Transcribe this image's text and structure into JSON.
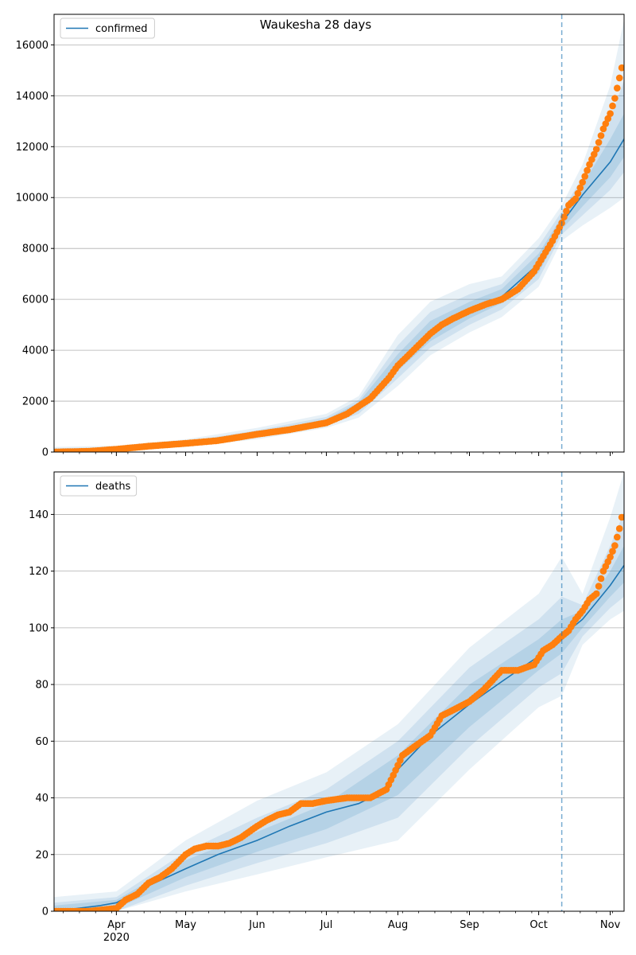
{
  "chart_data": [
    {
      "type": "line",
      "title": "Waukesha 28 days",
      "xlabel": "",
      "ylabel": "",
      "legend": {
        "placement": "top-left",
        "entries": [
          "confirmed"
        ]
      },
      "grid": "horizontal",
      "xlim": [
        "2020-03-05",
        "2020-11-07"
      ],
      "ylim": [
        0,
        17200
      ],
      "yticks": [
        0,
        2000,
        4000,
        6000,
        8000,
        10000,
        12000,
        14000,
        16000
      ],
      "forecast_start": "2020-10-11",
      "colors": {
        "model": "#1f77b4",
        "observed": "#ff7f0e",
        "bands": "#1f77b4"
      },
      "series": [
        {
          "name": "confirmed",
          "kind": "model-line",
          "x": [
            "2020-03-05",
            "2020-04-01",
            "2020-05-01",
            "2020-06-01",
            "2020-07-01",
            "2020-07-15",
            "2020-07-25",
            "2020-08-01",
            "2020-08-10",
            "2020-08-20",
            "2020-09-01",
            "2020-09-15",
            "2020-10-01",
            "2020-10-11",
            "2020-10-20",
            "2020-11-01",
            "2020-11-07"
          ],
          "y": [
            0,
            120,
            330,
            700,
            1200,
            1800,
            2650,
            3500,
            4250,
            4950,
            5550,
            6100,
            7400,
            9000,
            10100,
            11400,
            12300
          ]
        },
        {
          "name": "observed confirmed",
          "kind": "points",
          "x": [
            "2020-03-05",
            "2020-03-20",
            "2020-04-01",
            "2020-04-15",
            "2020-05-01",
            "2020-05-15",
            "2020-06-01",
            "2020-06-15",
            "2020-07-01",
            "2020-07-10",
            "2020-07-20",
            "2020-07-28",
            "2020-08-01",
            "2020-08-05",
            "2020-08-10",
            "2020-08-15",
            "2020-08-20",
            "2020-08-25",
            "2020-09-01",
            "2020-09-08",
            "2020-09-15",
            "2020-09-22",
            "2020-09-29",
            "2020-10-03",
            "2020-10-07",
            "2020-10-11",
            "2020-10-14",
            "2020-10-17",
            "2020-10-20",
            "2020-10-23",
            "2020-10-26",
            "2020-10-29",
            "2020-11-01",
            "2020-11-03",
            "2020-11-05",
            "2020-11-06"
          ],
          "y": [
            0,
            30,
            110,
            230,
            340,
            450,
            700,
            880,
            1150,
            1500,
            2100,
            2900,
            3400,
            3750,
            4200,
            4650,
            5000,
            5250,
            5550,
            5800,
            6000,
            6400,
            7100,
            7700,
            8300,
            9000,
            9700,
            9950,
            10600,
            11300,
            11900,
            12700,
            13300,
            13900,
            14700,
            15100
          ]
        }
      ],
      "bands": [
        {
          "x": [
            "2020-03-05",
            "2020-04-01",
            "2020-05-01",
            "2020-06-01",
            "2020-07-01",
            "2020-07-15",
            "2020-08-01",
            "2020-08-15",
            "2020-09-01",
            "2020-09-15",
            "2020-10-01",
            "2020-10-11",
            "2020-10-20",
            "2020-11-01",
            "2020-11-07"
          ],
          "lower": [
            0,
            40,
            200,
            500,
            950,
            1350,
            2600,
            3800,
            4700,
            5300,
            6500,
            8300,
            8900,
            9600,
            10000
          ],
          "upper": [
            200,
            250,
            500,
            950,
            1500,
            2200,
            4600,
            5900,
            6600,
            6900,
            8400,
            9700,
            11300,
            14400,
            17000
          ]
        },
        {
          "x": [
            "2020-03-05",
            "2020-04-01",
            "2020-05-01",
            "2020-06-01",
            "2020-07-01",
            "2020-07-15",
            "2020-08-01",
            "2020-08-15",
            "2020-09-01",
            "2020-09-15",
            "2020-10-01",
            "2020-10-11",
            "2020-10-20",
            "2020-11-01",
            "2020-11-07"
          ],
          "lower": [
            0,
            70,
            250,
            580,
            1050,
            1500,
            2900,
            4100,
            5000,
            5600,
            6800,
            8550,
            9300,
            10300,
            11000
          ],
          "upper": [
            150,
            190,
            420,
            850,
            1380,
            2050,
            4200,
            5500,
            6200,
            6600,
            8100,
            9450,
            10800,
            13100,
            14600
          ]
        },
        {
          "x": [
            "2020-03-05",
            "2020-04-01",
            "2020-05-01",
            "2020-06-01",
            "2020-07-01",
            "2020-07-15",
            "2020-08-01",
            "2020-08-15",
            "2020-09-01",
            "2020-09-15",
            "2020-10-01",
            "2020-10-11",
            "2020-10-20",
            "2020-11-01",
            "2020-11-07"
          ],
          "lower": [
            0,
            95,
            290,
            640,
            1120,
            1620,
            3200,
            4350,
            5250,
            5850,
            7050,
            8750,
            9650,
            10800,
            11600
          ],
          "upper": [
            90,
            150,
            370,
            770,
            1290,
            1950,
            3850,
            5150,
            5900,
            6400,
            7800,
            9250,
            10500,
            12300,
            13300
          ]
        }
      ],
      "xticks": {
        "major": [
          "Apr\n2020",
          "May",
          "Jun",
          "Jul",
          "Aug",
          "Sep",
          "Oct",
          "Nov"
        ],
        "major_dates": [
          "2020-04-01",
          "2020-05-01",
          "2020-06-01",
          "2020-07-01",
          "2020-08-01",
          "2020-09-01",
          "2020-10-01",
          "2020-11-01"
        ],
        "show_labels": false
      }
    },
    {
      "type": "line",
      "title": "",
      "xlabel": "",
      "ylabel": "",
      "legend": {
        "placement": "top-left",
        "entries": [
          "deaths"
        ]
      },
      "grid": "horizontal",
      "xlim": [
        "2020-03-05",
        "2020-11-07"
      ],
      "ylim": [
        0,
        155
      ],
      "yticks": [
        0,
        20,
        40,
        60,
        80,
        100,
        120,
        140
      ],
      "forecast_start": "2020-10-11",
      "colors": {
        "model": "#1f77b4",
        "observed": "#ff7f0e",
        "bands": "#1f77b4"
      },
      "series": [
        {
          "name": "deaths",
          "kind": "model-line",
          "x": [
            "2020-03-05",
            "2020-03-25",
            "2020-04-01",
            "2020-04-15",
            "2020-05-01",
            "2020-05-15",
            "2020-06-01",
            "2020-06-15",
            "2020-07-01",
            "2020-07-15",
            "2020-07-25",
            "2020-08-01",
            "2020-08-15",
            "2020-09-01",
            "2020-09-15",
            "2020-10-01",
            "2020-10-11",
            "2020-10-20",
            "2020-11-01",
            "2020-11-07"
          ],
          "y": [
            0,
            2,
            3,
            9,
            15,
            20,
            25,
            30,
            35,
            38,
            42,
            50,
            62,
            73,
            81,
            90,
            97,
            103,
            115,
            122
          ]
        },
        {
          "name": "observed deaths",
          "kind": "points",
          "x": [
            "2020-03-05",
            "2020-03-20",
            "2020-04-01",
            "2020-04-05",
            "2020-04-10",
            "2020-04-15",
            "2020-04-20",
            "2020-04-25",
            "2020-05-01",
            "2020-05-05",
            "2020-05-10",
            "2020-05-15",
            "2020-05-20",
            "2020-05-25",
            "2020-06-01",
            "2020-06-05",
            "2020-06-10",
            "2020-06-15",
            "2020-06-20",
            "2020-06-25",
            "2020-07-01",
            "2020-07-10",
            "2020-07-20",
            "2020-07-27",
            "2020-07-30",
            "2020-08-03",
            "2020-08-08",
            "2020-08-15",
            "2020-08-20",
            "2020-08-25",
            "2020-09-01",
            "2020-09-07",
            "2020-09-15",
            "2020-09-22",
            "2020-09-29",
            "2020-10-03",
            "2020-10-07",
            "2020-10-11",
            "2020-10-14",
            "2020-10-17",
            "2020-10-20",
            "2020-10-23",
            "2020-10-26",
            "2020-10-29",
            "2020-11-01",
            "2020-11-03",
            "2020-11-05",
            "2020-11-06"
          ],
          "y": [
            0,
            0,
            1,
            4,
            6,
            10,
            12,
            15,
            20,
            22,
            23,
            23,
            24,
            26,
            30,
            32,
            34,
            35,
            38,
            38,
            39,
            40,
            40,
            43,
            48,
            55,
            58,
            62,
            69,
            71,
            74,
            78,
            85,
            85,
            87,
            92,
            94,
            97,
            99,
            103,
            106,
            110,
            112,
            120,
            125,
            129,
            135,
            139
          ]
        }
      ],
      "bands": [
        {
          "x": [
            "2020-03-05",
            "2020-04-01",
            "2020-05-01",
            "2020-06-01",
            "2020-07-01",
            "2020-08-01",
            "2020-09-01",
            "2020-10-01",
            "2020-10-11",
            "2020-10-20",
            "2020-11-01",
            "2020-11-07"
          ],
          "lower": [
            0,
            0,
            7,
            13,
            19,
            25,
            50,
            72,
            76,
            94,
            103,
            106
          ],
          "upper": [
            5,
            7,
            25,
            39,
            49,
            66,
            93,
            112,
            125,
            112,
            139,
            155
          ]
        },
        {
          "x": [
            "2020-03-05",
            "2020-04-01",
            "2020-05-01",
            "2020-06-01",
            "2020-07-01",
            "2020-08-01",
            "2020-09-01",
            "2020-10-01",
            "2020-10-11",
            "2020-10-20",
            "2020-11-01",
            "2020-11-07"
          ],
          "lower": [
            0,
            0,
            9,
            17,
            24,
            33,
            58,
            79,
            84,
            97,
            107,
            111
          ],
          "upper": [
            3,
            5,
            21,
            33,
            43,
            60,
            86,
            103,
            111,
            108,
            129,
            141
          ]
        },
        {
          "x": [
            "2020-03-05",
            "2020-04-01",
            "2020-05-01",
            "2020-06-01",
            "2020-07-01",
            "2020-08-01",
            "2020-09-01",
            "2020-10-01",
            "2020-10-11",
            "2020-10-20",
            "2020-11-01",
            "2020-11-07"
          ],
          "lower": [
            0,
            1,
            12,
            21,
            29,
            41,
            65,
            85,
            91,
            100,
            111,
            116
          ],
          "upper": [
            2,
            4,
            18,
            28,
            38,
            55,
            80,
            96,
            103,
            106,
            120,
            129
          ]
        }
      ],
      "xticks": {
        "major": [
          "Apr\n2020",
          "May",
          "Jun",
          "Jul",
          "Aug",
          "Sep",
          "Oct",
          "Nov"
        ],
        "major_dates": [
          "2020-04-01",
          "2020-05-01",
          "2020-06-01",
          "2020-07-01",
          "2020-08-01",
          "2020-09-01",
          "2020-10-01",
          "2020-11-01"
        ],
        "show_labels": true
      }
    }
  ]
}
